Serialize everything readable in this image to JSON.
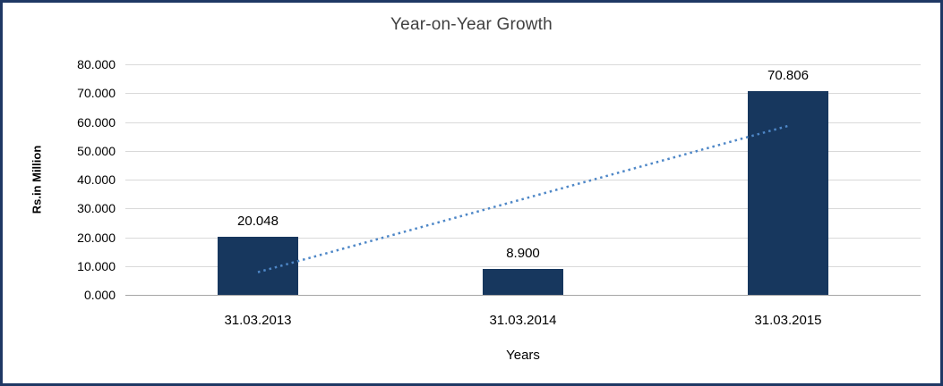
{
  "chart_data": {
    "type": "bar",
    "title": "Year-on-Year Growth",
    "xlabel": "Years",
    "ylabel": "Rs.in Million",
    "categories": [
      "31.03.2013",
      "31.03.2014",
      "31.03.2015"
    ],
    "values": [
      20.048,
      8.9,
      70.806
    ],
    "data_labels": [
      "20.048",
      "8.900",
      "70.806"
    ],
    "y_ticks": [
      "80.000",
      "70.000",
      "60.000",
      "50.000",
      "40.000",
      "30.000",
      "20.000",
      "10.000",
      "0.000"
    ],
    "ylim": [
      0,
      80
    ],
    "y_tick_step": 10,
    "grid": true,
    "legend": "none",
    "trendline": {
      "type": "linear",
      "style": "dotted",
      "color": "#4E87C7"
    },
    "colors": {
      "bar": "#17375E",
      "frame_border": "#1F3864",
      "gridline": "#D9D9D9",
      "axis_line": "#A6A6A6",
      "title_text": "#404040",
      "label_text": "#000000"
    }
  }
}
